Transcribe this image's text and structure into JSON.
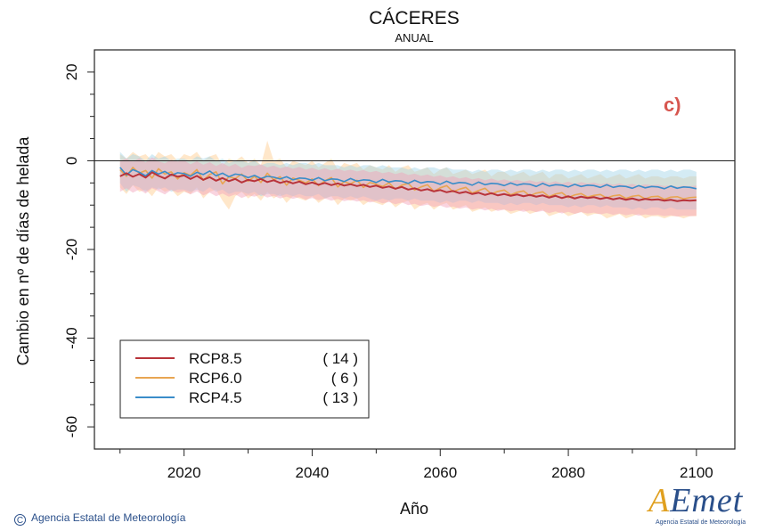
{
  "footer": {
    "copyright_symbol": "C",
    "agency": "Agencia Estatal de Meteorología"
  },
  "logo": {
    "first_letter": "A",
    "rest": "Emet",
    "caption": "Agencia Estatal de Meteorología"
  },
  "chart_data": {
    "type": "line",
    "title": "CÁCERES",
    "subtitle": "ANUAL",
    "panel_label": "c)",
    "xlabel": "Año",
    "ylabel": "Cambio en nº de días de helada",
    "xlim": [
      2006,
      2106
    ],
    "ylim": [
      -65,
      25
    ],
    "xticks": [
      2020,
      2040,
      2060,
      2080,
      2100
    ],
    "yticks": [
      -60,
      -40,
      -20,
      0,
      20
    ],
    "reference_line": 0,
    "grid": false,
    "legend_position": "bottom-left",
    "colors": {
      "RCP8.5": "#b8333a",
      "RCP6.0": "#e8a552",
      "RCP4.5": "#3a8dc9"
    },
    "band_colors": {
      "RCP8.5": "#f2a0b8",
      "RCP6.0": "#ffc98a",
      "RCP4.5": "#9fd3e6"
    },
    "x": [
      2010,
      2011,
      2012,
      2013,
      2014,
      2015,
      2016,
      2017,
      2018,
      2019,
      2020,
      2021,
      2022,
      2023,
      2024,
      2025,
      2026,
      2027,
      2028,
      2029,
      2030,
      2031,
      2032,
      2033,
      2034,
      2035,
      2036,
      2037,
      2038,
      2039,
      2040,
      2041,
      2042,
      2043,
      2044,
      2045,
      2046,
      2047,
      2048,
      2049,
      2050,
      2051,
      2052,
      2053,
      2054,
      2055,
      2056,
      2057,
      2058,
      2059,
      2060,
      2061,
      2062,
      2063,
      2064,
      2065,
      2066,
      2067,
      2068,
      2069,
      2070,
      2071,
      2072,
      2073,
      2074,
      2075,
      2076,
      2077,
      2078,
      2079,
      2080,
      2081,
      2082,
      2083,
      2084,
      2085,
      2086,
      2087,
      2088,
      2089,
      2090,
      2091,
      2092,
      2093,
      2094,
      2095,
      2096,
      2097,
      2098,
      2099,
      2100
    ],
    "series": [
      {
        "name": "RCP8.5",
        "models": 14,
        "values": [
          -3.5,
          -2.8,
          -3.6,
          -3.0,
          -3.8,
          -2.6,
          -3.4,
          -4.0,
          -3.1,
          -3.6,
          -3.3,
          -4.1,
          -3.4,
          -4.3,
          -3.7,
          -4.5,
          -3.9,
          -4.6,
          -4.1,
          -4.9,
          -4.3,
          -4.6,
          -4.1,
          -4.8,
          -4.4,
          -5.0,
          -4.6,
          -5.1,
          -4.7,
          -5.3,
          -4.9,
          -5.4,
          -5.0,
          -5.5,
          -5.1,
          -5.6,
          -5.3,
          -5.7,
          -5.4,
          -5.9,
          -5.6,
          -6.1,
          -5.8,
          -6.3,
          -5.9,
          -6.5,
          -6.2,
          -6.7,
          -6.4,
          -6.9,
          -6.6,
          -7.1,
          -6.8,
          -7.3,
          -7.0,
          -7.5,
          -7.2,
          -7.7,
          -7.3,
          -7.8,
          -7.5,
          -7.9,
          -7.6,
          -8.0,
          -7.7,
          -8.1,
          -7.8,
          -8.3,
          -7.9,
          -8.4,
          -8.0,
          -8.5,
          -8.1,
          -8.4,
          -8.2,
          -8.6,
          -8.3,
          -8.7,
          -8.4,
          -8.8,
          -8.5,
          -8.9,
          -8.6,
          -8.8,
          -8.7,
          -9.0,
          -8.8,
          -9.1,
          -8.9,
          -9.0,
          -8.9
        ],
        "band_upper": [
          0.0,
          0.5,
          -0.2,
          0.6,
          -0.4,
          0.8,
          -0.1,
          -0.6,
          0.3,
          -0.2,
          0.1,
          -0.8,
          -0.1,
          -0.9,
          -0.3,
          -1.2,
          -0.5,
          -1.3,
          -0.7,
          -1.6,
          -1.0,
          -1.2,
          -0.8,
          -1.5,
          -1.1,
          -1.7,
          -1.3,
          -1.8,
          -1.4,
          -2.0,
          -1.6,
          -2.1,
          -1.7,
          -2.2,
          -1.8,
          -2.3,
          -2.0,
          -2.4,
          -2.1,
          -2.6,
          -2.3,
          -2.8,
          -2.5,
          -3.0,
          -2.6,
          -3.2,
          -2.9,
          -3.4,
          -3.1,
          -3.6,
          -3.3,
          -3.8,
          -3.5,
          -4.0,
          -3.7,
          -4.2,
          -3.9,
          -4.4,
          -4.0,
          -4.5,
          -4.2,
          -4.6,
          -4.3,
          -4.7,
          -4.4,
          -4.8,
          -4.5,
          -5.0,
          -4.6,
          -5.1,
          -4.7,
          -5.2,
          -4.8,
          -5.1,
          -4.9,
          -5.3,
          -5.0,
          -5.4,
          -5.1,
          -5.5,
          -5.2,
          -5.6,
          -5.3,
          -5.5,
          -5.4,
          -5.7,
          -5.5,
          -5.8,
          -5.6,
          -5.7,
          -5.6
        ],
        "band_lower": [
          -7.0,
          -6.2,
          -7.2,
          -6.5,
          -7.4,
          -6.2,
          -6.9,
          -7.6,
          -6.6,
          -7.2,
          -6.8,
          -7.6,
          -6.9,
          -7.8,
          -7.2,
          -8.0,
          -7.4,
          -8.1,
          -7.6,
          -8.4,
          -7.8,
          -8.1,
          -7.6,
          -8.3,
          -7.9,
          -8.5,
          -8.1,
          -8.6,
          -8.2,
          -8.8,
          -8.4,
          -8.9,
          -8.5,
          -9.0,
          -8.6,
          -9.1,
          -8.8,
          -9.2,
          -8.9,
          -9.4,
          -9.1,
          -9.6,
          -9.3,
          -9.8,
          -9.4,
          -10.0,
          -9.7,
          -10.2,
          -9.9,
          -10.4,
          -10.1,
          -10.6,
          -10.3,
          -10.8,
          -10.5,
          -11.0,
          -10.7,
          -11.2,
          -10.8,
          -11.3,
          -11.0,
          -11.4,
          -11.1,
          -11.5,
          -11.2,
          -11.6,
          -11.3,
          -11.8,
          -11.4,
          -11.9,
          -11.5,
          -12.0,
          -11.6,
          -11.9,
          -11.7,
          -12.1,
          -11.8,
          -12.2,
          -11.9,
          -12.3,
          -12.0,
          -12.4,
          -12.1,
          -12.3,
          -12.2,
          -12.5,
          -12.3,
          -12.6,
          -12.4,
          -12.5,
          -12.4
        ]
      },
      {
        "name": "RCP6.0",
        "models": 6,
        "values": [
          -2.0,
          -3.5,
          -1.5,
          -2.8,
          -2.2,
          -3.9,
          -1.8,
          -3.0,
          -2.5,
          -4.1,
          -2.7,
          -3.3,
          -2.0,
          -4.4,
          -3.1,
          -2.5,
          -5.2,
          -3.6,
          -4.0,
          -3.0,
          -4.6,
          -3.5,
          -4.9,
          -2.8,
          -4.3,
          -3.6,
          -5.5,
          -3.9,
          -4.4,
          -5.0,
          -4.1,
          -5.6,
          -4.5,
          -3.8,
          -5.9,
          -4.7,
          -5.2,
          -4.4,
          -6.0,
          -4.9,
          -5.3,
          -5.8,
          -5.0,
          -6.4,
          -5.5,
          -5.1,
          -6.6,
          -5.9,
          -5.4,
          -6.9,
          -6.1,
          -5.6,
          -7.0,
          -6.4,
          -6.0,
          -7.3,
          -6.7,
          -6.2,
          -7.5,
          -6.9,
          -6.6,
          -7.7,
          -7.1,
          -6.8,
          -7.9,
          -7.3,
          -7.0,
          -8.1,
          -7.5,
          -7.2,
          -8.3,
          -7.7,
          -7.4,
          -8.2,
          -7.8,
          -7.6,
          -8.4,
          -7.9,
          -7.7,
          -8.5,
          -8.0,
          -7.8,
          -8.6,
          -8.1,
          -8.0,
          -8.7,
          -8.2,
          -8.1,
          -8.6,
          -8.3,
          -8.2
        ],
        "band_upper": [
          1.5,
          0.5,
          2.0,
          1.0,
          1.5,
          0.0,
          2.0,
          1.0,
          1.5,
          0.0,
          1.5,
          1.0,
          2.0,
          0.0,
          1.0,
          1.5,
          -1.0,
          0.5,
          0.0,
          1.0,
          -0.5,
          0.5,
          -1.0,
          4.5,
          0.0,
          0.5,
          -1.5,
          0.0,
          -0.5,
          -1.0,
          0.0,
          -1.5,
          -0.5,
          0.5,
          -2.0,
          -0.5,
          -1.0,
          -0.5,
          -2.0,
          -1.0,
          -1.5,
          -2.0,
          -1.0,
          -2.5,
          -1.5,
          -1.0,
          -2.5,
          -2.0,
          -1.5,
          -3.0,
          -2.0,
          -1.5,
          -3.0,
          -2.5,
          -2.0,
          -3.0,
          -2.5,
          -2.0,
          -3.5,
          -2.5,
          -2.5,
          -3.5,
          -3.0,
          -2.5,
          -3.5,
          -3.0,
          -2.5,
          -4.0,
          -3.0,
          -3.0,
          -4.0,
          -3.5,
          -3.0,
          -4.0,
          -3.5,
          -3.0,
          -4.0,
          -3.5,
          -3.0,
          -4.0,
          -3.5,
          -3.0,
          -4.0,
          -3.5,
          -3.5,
          -4.0,
          -3.5,
          -3.5,
          -4.0,
          -3.5,
          -3.5
        ],
        "band_lower": [
          -6.0,
          -7.5,
          -5.5,
          -7.0,
          -6.5,
          -8.0,
          -6.0,
          -7.0,
          -6.5,
          -8.0,
          -7.0,
          -7.5,
          -6.0,
          -8.5,
          -7.0,
          -6.5,
          -9.0,
          -11.0,
          -8.0,
          -7.0,
          -8.5,
          -7.5,
          -9.0,
          -7.0,
          -8.5,
          -7.5,
          -9.5,
          -8.0,
          -8.5,
          -9.0,
          -8.0,
          -9.5,
          -8.5,
          -8.0,
          -10.0,
          -8.5,
          -9.0,
          -8.5,
          -10.0,
          -9.0,
          -9.5,
          -10.0,
          -9.0,
          -10.5,
          -9.5,
          -9.0,
          -11.0,
          -10.0,
          -9.5,
          -11.0,
          -10.0,
          -9.5,
          -11.0,
          -10.5,
          -10.0,
          -11.5,
          -11.0,
          -10.5,
          -11.5,
          -11.0,
          -11.0,
          -12.0,
          -11.5,
          -11.0,
          -12.0,
          -11.5,
          -11.0,
          -12.5,
          -12.0,
          -11.5,
          -12.5,
          -12.0,
          -11.5,
          -12.5,
          -12.0,
          -12.0,
          -13.0,
          -12.5,
          -12.0,
          -13.0,
          -12.5,
          -12.0,
          -13.0,
          -12.5,
          -12.5,
          -13.0,
          -12.5,
          -12.5,
          -13.0,
          -12.5,
          -12.5
        ]
      },
      {
        "name": "RCP4.5",
        "models": 13,
        "values": [
          -1.5,
          -3.2,
          -2.0,
          -2.6,
          -3.4,
          -2.2,
          -3.0,
          -2.4,
          -3.3,
          -2.7,
          -2.9,
          -3.5,
          -2.6,
          -3.1,
          -2.3,
          -3.4,
          -2.8,
          -3.6,
          -3.0,
          -3.2,
          -3.8,
          -3.3,
          -4.0,
          -3.5,
          -3.7,
          -4.1,
          -3.6,
          -4.3,
          -3.9,
          -4.0,
          -4.4,
          -3.8,
          -4.5,
          -4.1,
          -4.2,
          -4.7,
          -4.0,
          -4.6,
          -4.3,
          -4.4,
          -4.9,
          -4.2,
          -4.8,
          -4.5,
          -4.6,
          -5.1,
          -4.4,
          -5.0,
          -4.7,
          -4.8,
          -5.3,
          -4.6,
          -5.2,
          -4.9,
          -5.0,
          -5.5,
          -4.8,
          -5.4,
          -5.1,
          -5.2,
          -5.6,
          -5.0,
          -5.5,
          -5.2,
          -5.3,
          -5.8,
          -5.1,
          -5.7,
          -5.4,
          -5.5,
          -5.9,
          -5.3,
          -5.8,
          -5.5,
          -5.6,
          -6.0,
          -5.4,
          -6.0,
          -5.7,
          -5.8,
          -6.2,
          -5.6,
          -6.1,
          -5.8,
          -5.9,
          -6.3,
          -5.7,
          -6.2,
          -5.9,
          -6.0,
          -6.3
        ],
        "band_upper": [
          2.0,
          0.5,
          1.5,
          1.0,
          0.0,
          1.5,
          0.5,
          1.0,
          0.0,
          0.5,
          0.5,
          0.0,
          1.0,
          0.5,
          1.0,
          0.0,
          0.5,
          -0.5,
          0.0,
          0.0,
          -0.5,
          0.0,
          -1.0,
          -0.5,
          -0.5,
          -1.0,
          -0.5,
          -1.0,
          -0.5,
          -0.5,
          -1.0,
          -0.5,
          -1.0,
          -1.0,
          -1.0,
          -1.5,
          -1.0,
          -1.5,
          -1.0,
          -1.0,
          -1.5,
          -1.0,
          -1.5,
          -1.5,
          -1.5,
          -2.0,
          -1.5,
          -2.0,
          -1.5,
          -1.5,
          -2.0,
          -1.5,
          -2.0,
          -2.0,
          -2.0,
          -2.5,
          -2.0,
          -2.5,
          -2.0,
          -2.0,
          -2.5,
          -2.0,
          -2.5,
          -2.0,
          -2.0,
          -2.5,
          -2.0,
          -2.5,
          -2.0,
          -2.0,
          -2.5,
          -2.0,
          -2.5,
          -2.0,
          -2.0,
          -2.5,
          -2.0,
          -2.5,
          -2.0,
          -2.0,
          -2.5,
          -2.0,
          -2.5,
          -2.0,
          -2.0,
          -2.5,
          -2.0,
          -2.5,
          -2.0,
          -2.0,
          -2.5
        ],
        "band_lower": [
          -5.0,
          -7.0,
          -5.5,
          -6.0,
          -7.0,
          -6.0,
          -6.5,
          -6.0,
          -7.0,
          -6.5,
          -6.5,
          -7.0,
          -6.5,
          -7.0,
          -6.0,
          -7.0,
          -6.5,
          -7.5,
          -7.0,
          -7.0,
          -7.5,
          -7.0,
          -8.0,
          -7.5,
          -7.5,
          -8.0,
          -7.5,
          -8.0,
          -7.5,
          -8.0,
          -8.0,
          -7.5,
          -8.5,
          -8.0,
          -8.0,
          -8.5,
          -8.0,
          -8.5,
          -8.0,
          -8.5,
          -9.0,
          -8.5,
          -9.0,
          -8.5,
          -8.5,
          -9.0,
          -8.5,
          -9.0,
          -9.0,
          -9.0,
          -9.5,
          -9.0,
          -9.5,
          -9.0,
          -9.0,
          -9.5,
          -9.0,
          -9.5,
          -9.5,
          -9.5,
          -10.0,
          -9.5,
          -10.0,
          -9.5,
          -9.5,
          -10.0,
          -9.5,
          -10.0,
          -10.0,
          -10.0,
          -10.5,
          -10.0,
          -10.5,
          -10.0,
          -10.0,
          -10.5,
          -10.0,
          -10.5,
          -10.5,
          -10.5,
          -11.0,
          -10.5,
          -11.0,
          -10.5,
          -10.5,
          -11.0,
          -10.5,
          -11.0,
          -11.0,
          -11.0,
          -11.0
        ]
      }
    ]
  }
}
